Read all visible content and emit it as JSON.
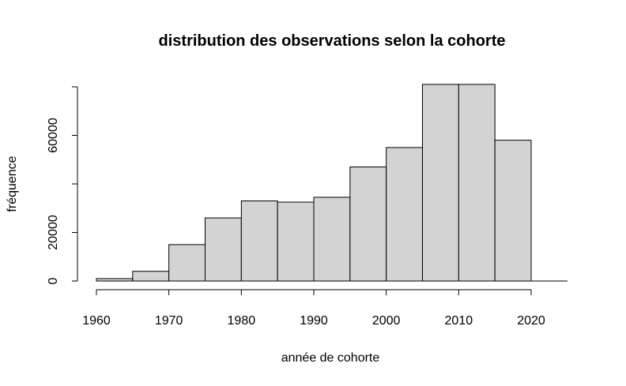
{
  "chart_data": {
    "type": "bar",
    "title": "distribution des observations selon la cohorte",
    "xlabel": "année de cohorte",
    "ylabel": "fréquence",
    "bins": [
      [
        1960,
        1965
      ],
      [
        1965,
        1970
      ],
      [
        1970,
        1975
      ],
      [
        1975,
        1980
      ],
      [
        1980,
        1985
      ],
      [
        1985,
        1990
      ],
      [
        1990,
        1995
      ],
      [
        1995,
        2000
      ],
      [
        2000,
        2005
      ],
      [
        2005,
        2010
      ],
      [
        2010,
        2015
      ],
      [
        2015,
        2020
      ]
    ],
    "values": [
      1000,
      4000,
      15000,
      26000,
      33000,
      32500,
      34500,
      47000,
      55000,
      81000,
      81000,
      58000
    ],
    "xlim": [
      1960,
      2025
    ],
    "ylim": [
      0,
      80000
    ],
    "xticks": [
      1960,
      1970,
      1980,
      1990,
      2000,
      2010,
      2020
    ],
    "xtick_labels": [
      "1960",
      "1970",
      "1980",
      "1990",
      "2000",
      "2010",
      "2020"
    ],
    "yticks": [
      0,
      20000,
      40000,
      60000,
      80000
    ],
    "ytick_labels": [
      "0",
      "20000",
      "",
      "60000",
      ""
    ],
    "bar_color": "#d3d3d3",
    "edge_color": "#000000",
    "grid": false,
    "legend": "none"
  }
}
